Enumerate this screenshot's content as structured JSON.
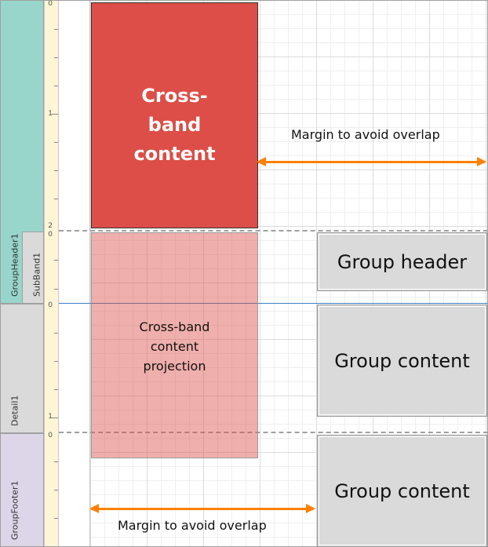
{
  "bands": {
    "group_header": {
      "label": "GroupHeader1",
      "color": "#98d5cb"
    },
    "sub_band": {
      "label": "SubBand1",
      "color": "#dadada"
    },
    "detail": {
      "label": "Detail1",
      "color": "#dadada"
    },
    "group_footer": {
      "label": "GroupFooter1",
      "color": "#ddd6e9"
    }
  },
  "ruler": {
    "labels": [
      "0",
      "1",
      "2",
      "0",
      "0",
      "1",
      "0"
    ]
  },
  "cross_band": {
    "title": "Cross-band content",
    "projection": "Cross-band content projection",
    "color": "#dc4e47",
    "projection_color": "#eca8a5"
  },
  "boxes": {
    "group_header": "Group header",
    "detail_content": "Group content",
    "footer_content": "Group content"
  },
  "notes": {
    "top_margin": "Margin to avoid overlap",
    "bottom_margin": "Margin to avoid overlap",
    "arrow_color": "#ff8000"
  }
}
